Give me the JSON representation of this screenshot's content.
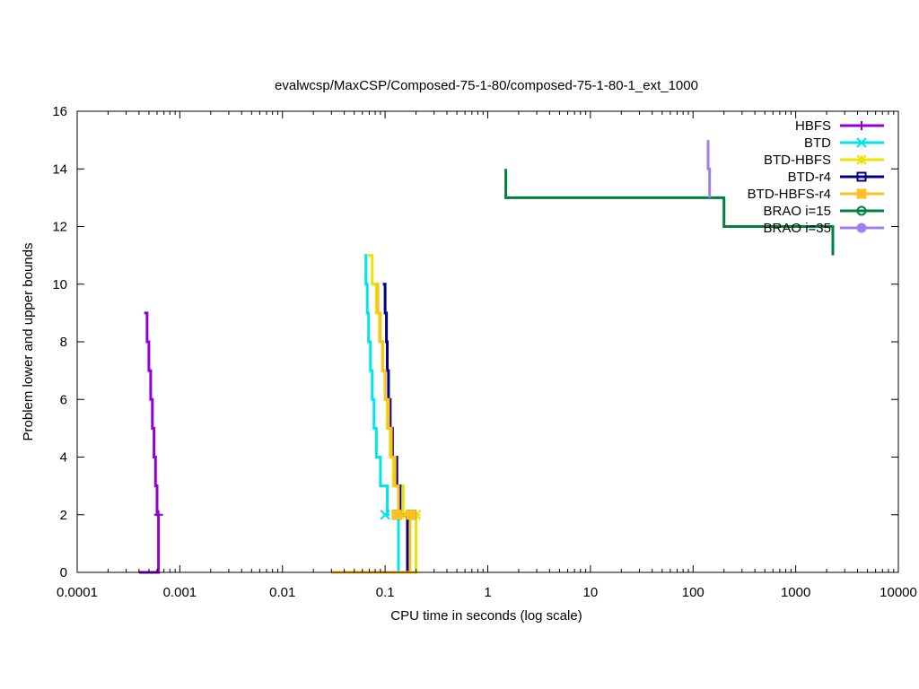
{
  "chart_data": {
    "type": "line",
    "title": "evalwcsp/MaxCSP/Composed-75-1-80/composed-75-1-80-1_ext_1000",
    "xlabel": "CPU time in seconds (log scale)",
    "ylabel": "Problem lower and upper bounds",
    "x_scale": "log",
    "xlim": [
      0.0001,
      10000
    ],
    "ylim": [
      0,
      16
    ],
    "x_ticks": [
      0.0001,
      0.001,
      0.01,
      0.1,
      1,
      10,
      100,
      1000,
      10000
    ],
    "x_tick_labels": [
      "0.0001",
      "0.001",
      "0.01",
      "0.1",
      "1",
      "10",
      "100",
      "1000",
      "10000"
    ],
    "y_ticks": [
      0,
      2,
      4,
      6,
      8,
      10,
      12,
      14,
      16
    ],
    "y_tick_labels": [
      "0",
      "2",
      "4",
      "6",
      "8",
      "10",
      "12",
      "14",
      "16"
    ],
    "grid": false,
    "legend_position": "top-right",
    "series": [
      {
        "name": "HBFS",
        "color": "#9400d3",
        "marker": "plus",
        "upper": [
          [
            0.00045,
            9
          ],
          [
            0.00048,
            8
          ],
          [
            0.0005,
            7
          ],
          [
            0.00052,
            6
          ],
          [
            0.00054,
            5
          ],
          [
            0.00056,
            4
          ],
          [
            0.00058,
            3
          ],
          [
            0.0006,
            2
          ],
          [
            0.00062,
            2
          ]
        ],
        "lower": [
          [
            0.0004,
            0
          ],
          [
            0.00058,
            0
          ],
          [
            0.00062,
            0
          ],
          [
            0.00062,
            2
          ]
        ],
        "marker_points": [
          [
            0.00062,
            2
          ]
        ]
      },
      {
        "name": "BTD",
        "color": "#00e5e5",
        "marker": "x",
        "upper": [
          [
            0.063,
            11
          ],
          [
            0.065,
            10
          ],
          [
            0.067,
            9
          ],
          [
            0.069,
            8
          ],
          [
            0.072,
            7
          ],
          [
            0.075,
            6
          ],
          [
            0.078,
            5
          ],
          [
            0.082,
            4
          ],
          [
            0.09,
            3
          ],
          [
            0.105,
            2
          ],
          [
            0.11,
            2
          ]
        ],
        "lower": [
          [
            0.1,
            0
          ],
          [
            0.135,
            0
          ],
          [
            0.135,
            2
          ]
        ],
        "marker_points": [
          [
            0.1,
            2
          ]
        ]
      },
      {
        "name": "BTD-HBFS",
        "color": "#e5e500",
        "marker": "star",
        "upper": [
          [
            0.068,
            11
          ],
          [
            0.075,
            10
          ],
          [
            0.082,
            9
          ],
          [
            0.088,
            8
          ],
          [
            0.094,
            7
          ],
          [
            0.1,
            6
          ],
          [
            0.105,
            5
          ],
          [
            0.112,
            4
          ],
          [
            0.12,
            3
          ],
          [
            0.15,
            2
          ],
          [
            0.2,
            2
          ]
        ],
        "lower": [
          [
            0.15,
            0
          ],
          [
            0.185,
            0
          ],
          [
            0.2,
            0
          ],
          [
            0.2,
            2
          ]
        ],
        "marker_points": [
          [
            0.2,
            2
          ],
          [
            0.15,
            2
          ]
        ]
      },
      {
        "name": "BTD-r4",
        "color": "#00008b",
        "marker": "square-open",
        "upper": [
          [
            0.095,
            10
          ],
          [
            0.1,
            9
          ],
          [
            0.103,
            8
          ],
          [
            0.105,
            7
          ],
          [
            0.108,
            6
          ],
          [
            0.112,
            5
          ],
          [
            0.118,
            4
          ],
          [
            0.13,
            3
          ],
          [
            0.14,
            2
          ],
          [
            0.155,
            2
          ]
        ],
        "lower": [
          [
            0.155,
            0
          ],
          [
            0.165,
            0
          ],
          [
            0.165,
            2
          ]
        ],
        "marker_points": [
          [
            0.13,
            2
          ],
          [
            0.18,
            2
          ]
        ]
      },
      {
        "name": "BTD-HBFS-r4",
        "color": "#ffc020",
        "marker": "square-filled",
        "upper": [
          [
            0.08,
            10
          ],
          [
            0.085,
            9
          ],
          [
            0.09,
            8
          ],
          [
            0.095,
            7
          ],
          [
            0.1,
            6
          ],
          [
            0.108,
            5
          ],
          [
            0.115,
            4
          ],
          [
            0.125,
            3
          ],
          [
            0.135,
            2
          ],
          [
            0.175,
            2
          ]
        ],
        "lower": [
          [
            0.03,
            0
          ],
          [
            0.175,
            0
          ],
          [
            0.175,
            2
          ]
        ],
        "marker_points": [
          [
            0.13,
            2
          ],
          [
            0.18,
            2
          ]
        ]
      },
      {
        "name": "BRAO i=15",
        "color": "#007f3f",
        "marker": "circle-open",
        "upper": [
          [
            1.5,
            14
          ],
          [
            1.5,
            13
          ],
          [
            200,
            13
          ],
          [
            200,
            12
          ],
          [
            2300,
            12
          ],
          [
            2300,
            11
          ]
        ],
        "lower": [],
        "marker_points": []
      },
      {
        "name": "BRAO i=35",
        "color": "#a080f0",
        "marker": "circle-filled",
        "upper": [
          [
            140,
            15
          ],
          [
            140,
            14
          ],
          [
            145,
            14
          ],
          [
            145,
            13
          ]
        ],
        "lower": [],
        "marker_points": []
      }
    ]
  }
}
